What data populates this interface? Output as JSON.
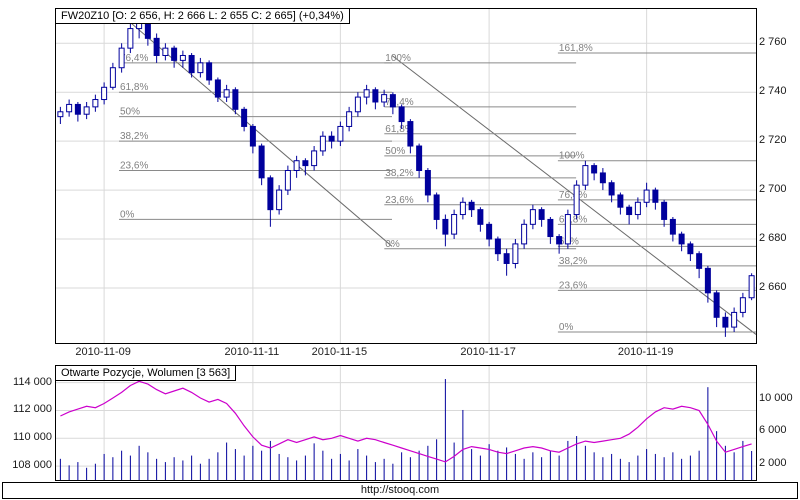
{
  "header": {
    "title": "FW20Z10 [O: 2 656, H: 2 666  L: 2 655  C: 2 665] (+0,34%)"
  },
  "volume_panel": {
    "title": "Otwarte Pozycje, Wolumen [3 563]"
  },
  "footer": {
    "link_label": "http://stooq.com"
  },
  "colors": {
    "candle": "#00009c",
    "up_fill": "#ffffff",
    "grid": "#d9d9d9",
    "fib_line": "#8a8a8a",
    "fib_text": "#808080",
    "trend": "#6a6a6a",
    "oi_line": "#cc00cc",
    "volume_bar": "#00009c",
    "border": "#000000"
  },
  "chart_data": [
    {
      "type": "candlestick",
      "title": "FW20Z10 intraday price",
      "price_axis": {
        "min": 2637.5,
        "max": 2774,
        "ticks": [
          {
            "value": 2760,
            "label": "2 760"
          },
          {
            "value": 2740,
            "label": "2 740"
          },
          {
            "value": 2720,
            "label": "2 720"
          },
          {
            "value": 2700,
            "label": "2 700"
          },
          {
            "value": 2680,
            "label": "2 680"
          },
          {
            "value": 2660,
            "label": "2 660"
          }
        ]
      },
      "x_axis": {
        "ticks": [
          {
            "index": 5,
            "label": "2010-11-09"
          },
          {
            "index": 22,
            "label": "2010-11-11"
          },
          {
            "index": 32,
            "label": "2010-11-15"
          },
          {
            "index": 49,
            "label": "2010-11-17"
          },
          {
            "index": 67,
            "label": "2010-11-19"
          }
        ]
      },
      "candles": [
        [
          2730,
          2734,
          2727,
          2732
        ],
        [
          2732,
          2737,
          2730,
          2735
        ],
        [
          2735,
          2736,
          2728,
          2731
        ],
        [
          2731,
          2736,
          2729,
          2734
        ],
        [
          2734,
          2739,
          2732,
          2737
        ],
        [
          2737,
          2744,
          2735,
          2742
        ],
        [
          2742,
          2752,
          2741,
          2750
        ],
        [
          2750,
          2760,
          2748,
          2758
        ],
        [
          2758,
          2768,
          2756,
          2766
        ],
        [
          2766,
          2772,
          2762,
          2770
        ],
        [
          2770,
          2771,
          2759,
          2762
        ],
        [
          2762,
          2764,
          2752,
          2755
        ],
        [
          2755,
          2760,
          2753,
          2758
        ],
        [
          2758,
          2759,
          2750,
          2753
        ],
        [
          2753,
          2757,
          2750,
          2755
        ],
        [
          2755,
          2756,
          2746,
          2748
        ],
        [
          2748,
          2754,
          2746,
          2752
        ],
        [
          2752,
          2753,
          2743,
          2745
        ],
        [
          2745,
          2746,
          2736,
          2738
        ],
        [
          2738,
          2743,
          2736,
          2741
        ],
        [
          2741,
          2742,
          2731,
          2733
        ],
        [
          2733,
          2734,
          2724,
          2726
        ],
        [
          2726,
          2727,
          2715,
          2718
        ],
        [
          2718,
          2719,
          2702,
          2705
        ],
        [
          2705,
          2706,
          2685,
          2692
        ],
        [
          2692,
          2702,
          2690,
          2700
        ],
        [
          2700,
          2710,
          2698,
          2708
        ],
        [
          2708,
          2714,
          2705,
          2712
        ],
        [
          2712,
          2713,
          2706,
          2710
        ],
        [
          2710,
          2718,
          2708,
          2716
        ],
        [
          2716,
          2724,
          2714,
          2722
        ],
        [
          2722,
          2724,
          2717,
          2720
        ],
        [
          2720,
          2728,
          2718,
          2726
        ],
        [
          2726,
          2734,
          2724,
          2732
        ],
        [
          2732,
          2740,
          2730,
          2738
        ],
        [
          2738,
          2743,
          2735,
          2741
        ],
        [
          2741,
          2742,
          2733,
          2736
        ],
        [
          2736,
          2741,
          2734,
          2739
        ],
        [
          2739,
          2740,
          2731,
          2734
        ],
        [
          2734,
          2735,
          2725,
          2728
        ],
        [
          2728,
          2729,
          2715,
          2718
        ],
        [
          2718,
          2719,
          2705,
          2708
        ],
        [
          2708,
          2709,
          2695,
          2698
        ],
        [
          2698,
          2699,
          2684,
          2688
        ],
        [
          2688,
          2690,
          2677,
          2682
        ],
        [
          2682,
          2692,
          2680,
          2690
        ],
        [
          2690,
          2697,
          2688,
          2695
        ],
        [
          2695,
          2696,
          2689,
          2692
        ],
        [
          2692,
          2693,
          2683,
          2686
        ],
        [
          2686,
          2687,
          2677,
          2680
        ],
        [
          2680,
          2681,
          2671,
          2674
        ],
        [
          2674,
          2676,
          2665,
          2670
        ],
        [
          2670,
          2680,
          2668,
          2678
        ],
        [
          2678,
          2688,
          2676,
          2686
        ],
        [
          2686,
          2694,
          2684,
          2692
        ],
        [
          2692,
          2693,
          2685,
          2688
        ],
        [
          2688,
          2689,
          2678,
          2681
        ],
        [
          2681,
          2682,
          2674,
          2678
        ],
        [
          2678,
          2692,
          2676,
          2690
        ],
        [
          2690,
          2704,
          2688,
          2702
        ],
        [
          2702,
          2712,
          2700,
          2710
        ],
        [
          2710,
          2711,
          2704,
          2707
        ],
        [
          2707,
          2709,
          2700,
          2703
        ],
        [
          2703,
          2704,
          2695,
          2698
        ],
        [
          2698,
          2699,
          2690,
          2693
        ],
        [
          2693,
          2694,
          2686,
          2690
        ],
        [
          2690,
          2697,
          2688,
          2695
        ],
        [
          2695,
          2703,
          2693,
          2700
        ],
        [
          2700,
          2701,
          2692,
          2695
        ],
        [
          2695,
          2696,
          2685,
          2688
        ],
        [
          2688,
          2689,
          2679,
          2682
        ],
        [
          2682,
          2683,
          2675,
          2678
        ],
        [
          2678,
          2679,
          2671,
          2674
        ],
        [
          2674,
          2675,
          2664,
          2668
        ],
        [
          2668,
          2669,
          2654,
          2658
        ],
        [
          2658,
          2659,
          2644,
          2648
        ],
        [
          2648,
          2650,
          2640,
          2644
        ],
        [
          2644,
          2652,
          2642,
          2650
        ],
        [
          2650,
          2658,
          2648,
          2656
        ],
        [
          2656,
          2666,
          2655,
          2665
        ]
      ],
      "fib_sets": [
        {
          "x_start": 0.09,
          "x_end": 0.48,
          "levels": [
            {
              "label": "76,4%",
              "price": 2752
            },
            {
              "label": "61,8%",
              "price": 2740
            },
            {
              "label": "50%",
              "price": 2730
            },
            {
              "label": "38,2%",
              "price": 2720
            },
            {
              "label": "23,6%",
              "price": 2708
            },
            {
              "label": "0%",
              "price": 2688
            }
          ]
        },
        {
          "x_start": 0.469,
          "x_end": 0.743,
          "levels": [
            {
              "label": "100%",
              "price": 2752
            },
            {
              "label": "76,4%",
              "price": 2734
            },
            {
              "label": "61,8%",
              "price": 2723
            },
            {
              "label": "50%",
              "price": 2714
            },
            {
              "label": "38,2%",
              "price": 2705
            },
            {
              "label": "23,6%",
              "price": 2694
            },
            {
              "label": "0%",
              "price": 2676
            }
          ]
        },
        {
          "x_start": 0.717,
          "x_end": 1.0,
          "levels": [
            {
              "label": "161,8%",
              "price": 2756
            },
            {
              "label": "100%",
              "price": 2712
            },
            {
              "label": "76,4%",
              "price": 2696
            },
            {
              "label": "61,8%",
              "price": 2686
            },
            {
              "label": "50%",
              "price": 2677
            },
            {
              "label": "38,2%",
              "price": 2669
            },
            {
              "label": "23,6%",
              "price": 2659
            },
            {
              "label": "0%",
              "price": 2642
            }
          ]
        }
      ],
      "trendlines": [
        {
          "x1": 0.1,
          "p1": 2770,
          "x2": 0.48,
          "p2": 2677
        },
        {
          "x1": 0.48,
          "p1": 2755,
          "x2": 1.0,
          "p2": 2641
        }
      ]
    },
    {
      "type": "bar+line",
      "title": "Otwarte Pozycje, Wolumen",
      "last_volume_label": "3 563",
      "oi_axis": {
        "min": 107000,
        "max": 115200,
        "ticks": [
          {
            "value": 114000,
            "label": "114 000"
          },
          {
            "value": 112000,
            "label": "112 000"
          },
          {
            "value": 110000,
            "label": "110 000"
          },
          {
            "value": 108000,
            "label": "108 000"
          }
        ]
      },
      "volume_axis": {
        "max": 14000,
        "ticks": [
          {
            "value": 10000,
            "label": "10 000"
          },
          {
            "value": 6000,
            "label": "6 000"
          },
          {
            "value": 2000,
            "label": "2 000"
          }
        ]
      },
      "open_interest": [
        111600,
        111900,
        112100,
        112300,
        112200,
        112500,
        112900,
        113300,
        113800,
        114100,
        113900,
        113500,
        113200,
        113400,
        113600,
        113300,
        112900,
        112600,
        112800,
        112500,
        111800,
        110900,
        110100,
        109500,
        109300,
        109600,
        109900,
        109700,
        109900,
        110100,
        109900,
        110000,
        110200,
        110000,
        109800,
        110000,
        109900,
        109700,
        109500,
        109300,
        109100,
        108900,
        108700,
        108500,
        108300,
        108700,
        109200,
        109400,
        109300,
        109200,
        109000,
        108900,
        109100,
        109300,
        109400,
        109300,
        109100,
        109000,
        109300,
        109600,
        109800,
        109700,
        109800,
        109900,
        110000,
        110300,
        110800,
        111400,
        111900,
        112200,
        112100,
        112300,
        112200,
        112000,
        111000,
        109800,
        109000,
        109200,
        109400,
        109600
      ],
      "volume": [
        2600,
        1800,
        2200,
        1500,
        2000,
        3200,
        2800,
        3600,
        3000,
        4200,
        3400,
        2600,
        2200,
        2800,
        2400,
        3000,
        2000,
        2600,
        3400,
        4600,
        3800,
        3000,
        4200,
        3600,
        4800,
        3200,
        2800,
        2400,
        3000,
        4500,
        3600,
        2600,
        3200,
        2400,
        3800,
        3000,
        2200,
        2600,
        2000,
        3400,
        2800,
        3600,
        4200,
        5000,
        12400,
        4600,
        8600,
        3800,
        3000,
        4400,
        3600,
        4000,
        3200,
        2600,
        3400,
        2800,
        3600,
        3000,
        4800,
        5400,
        4200,
        3400,
        2800,
        3200,
        2600,
        2200,
        3000,
        3800,
        3200,
        2800,
        3400,
        2600,
        3000,
        3600,
        11400,
        6000,
        4200,
        3400,
        4800,
        3563
      ]
    }
  ]
}
